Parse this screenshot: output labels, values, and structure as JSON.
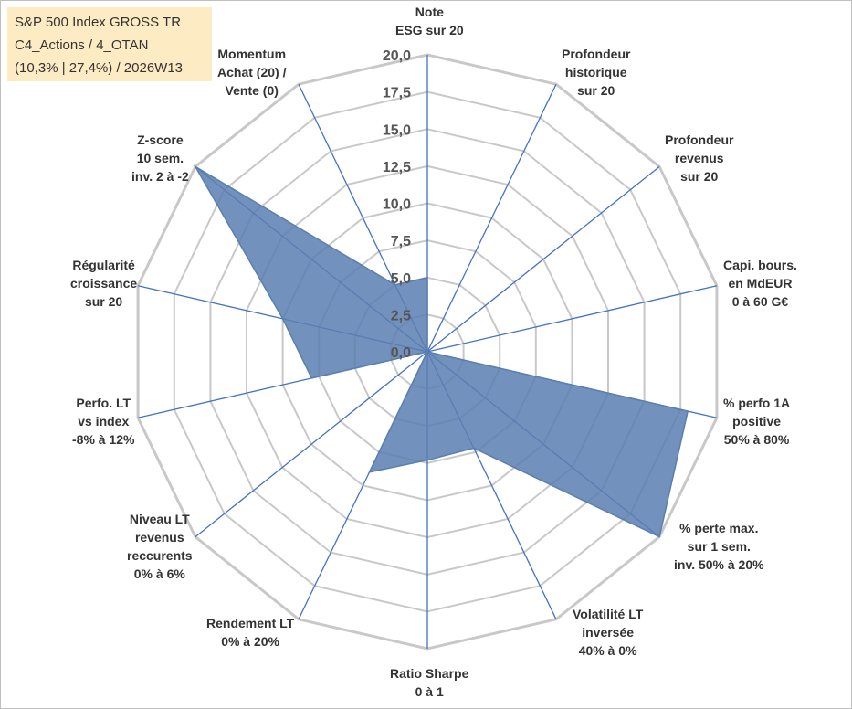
{
  "info": {
    "line1": "S&P 500 Index GROSS TR",
    "line2": "C4_Actions / 4_OTAN",
    "line3": "(10,3% | 27,4%) / 2026W13"
  },
  "chart_data": {
    "type": "radar",
    "title": "",
    "rmin": 0,
    "rmax": 20,
    "ticks": [
      "0,0",
      "2,5",
      "5,0",
      "7,5",
      "10,0",
      "12,5",
      "15,0",
      "17,5",
      "20,0"
    ],
    "tick_values": [
      0,
      2.5,
      5,
      7.5,
      10,
      12.5,
      15,
      17.5,
      20
    ],
    "categories": [
      [
        "Note",
        "ESG sur 20"
      ],
      [
        "Profondeur",
        "historique",
        "sur 20"
      ],
      [
        "Profondeur",
        "revenus",
        "sur 20"
      ],
      [
        "Capi. bours.",
        "en MdEUR",
        "0 à 60 G€"
      ],
      [
        "% perfo 1A",
        "positive",
        "50% à 80%"
      ],
      [
        "% perte max.",
        "sur 1 sem.",
        "inv. 50% à 20%"
      ],
      [
        "Volatilité LT",
        "inversée",
        "40% à 0%"
      ],
      [
        "Ratio Sharpe",
        "0 à 1"
      ],
      [
        "Rendement LT",
        "0% à 20%"
      ],
      [
        "Niveau LT",
        "revenus",
        "reccurents",
        "0% à 6%"
      ],
      [
        "Perfo. LT",
        "vs index",
        "-8% à 12%"
      ],
      [
        "Régularité",
        "croissance",
        "sur 20"
      ],
      [
        "Z-score",
        "10 sem.",
        "inv. 2 à -2"
      ],
      [
        "Momentum",
        "Achat (20) /",
        "Vente (0)"
      ]
    ],
    "series": [
      {
        "name": "S&P 500 Index GROSS TR",
        "values": [
          5.0,
          0.0,
          0.0,
          0.0,
          18.0,
          20.0,
          7.2,
          7.3,
          9.0,
          0.0,
          8.0,
          10.0,
          20.0,
          5.0
        ],
        "color": "#5b7fb1"
      }
    ],
    "colors": {
      "grid": "#c8c8c8",
      "spoke": "#4472c4",
      "fill": "#5b7fb1",
      "edge": "#5a7fae"
    }
  }
}
